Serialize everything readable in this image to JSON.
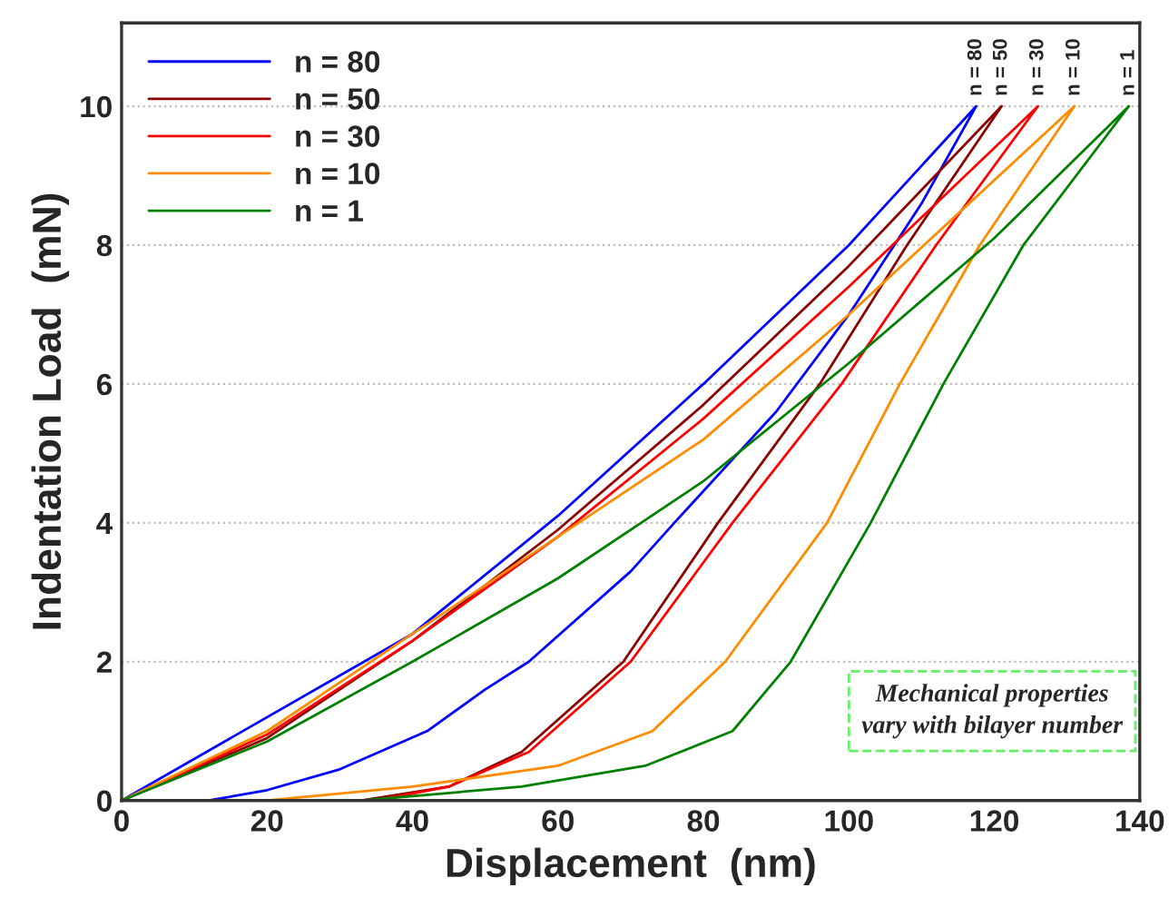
{
  "chart_data": {
    "type": "line",
    "xlabel": "Displacement  (nm)",
    "ylabel": "Indentation Load  (mN)",
    "xlim": [
      0,
      140
    ],
    "xticks": [
      0,
      20,
      40,
      60,
      80,
      100,
      120,
      140
    ],
    "ylim": [
      0,
      11.2
    ],
    "yticks": [
      0,
      2,
      4,
      6,
      8,
      10
    ],
    "grid": "y",
    "legend": "top left",
    "marker": "none",
    "line_style": "solid",
    "series": [
      {
        "name": "n = 80",
        "color": "#0000ff",
        "x": [
          0,
          40,
          60,
          80,
          100,
          117.5,
          110,
          100,
          90,
          76,
          70,
          56,
          50,
          42,
          30,
          20,
          12
        ],
        "values": [
          0,
          2.4,
          4.1,
          6.0,
          8.0,
          10,
          8.6,
          7.0,
          5.6,
          4,
          3.3,
          2,
          1.6,
          1,
          0.45,
          0.15,
          0
        ]
      },
      {
        "name": "n = 50",
        "color": "#8b0000",
        "x": [
          0,
          20,
          40,
          60,
          80,
          100,
          121,
          108,
          96,
          82,
          69,
          55,
          45,
          33
        ],
        "values": [
          0,
          0.9,
          2.3,
          3.9,
          5.7,
          7.7,
          10,
          8,
          6,
          4,
          2,
          0.7,
          0.2,
          0
        ]
      },
      {
        "name": "n = 30",
        "color": "#ff0000",
        "x": [
          0,
          20,
          40,
          60,
          80,
          100,
          126,
          112,
          99,
          84,
          70,
          56,
          45,
          35
        ],
        "values": [
          0,
          0.95,
          2.3,
          3.8,
          5.5,
          7.4,
          10,
          8,
          6,
          4,
          2,
          0.7,
          0.2,
          0
        ]
      },
      {
        "name": "n = 10",
        "color": "#ff8c00",
        "x": [
          0,
          20,
          40,
          60,
          80,
          100,
          131,
          118,
          107,
          97,
          83,
          73,
          60,
          40,
          20
        ],
        "values": [
          0,
          1.0,
          2.4,
          3.8,
          5.2,
          7.0,
          10,
          8,
          6,
          4,
          2,
          1,
          0.5,
          0.2,
          0
        ]
      },
      {
        "name": "n = 1",
        "color": "#008000",
        "x": [
          0,
          20,
          40,
          60,
          80,
          100,
          120,
          138.5,
          124,
          113,
          103,
          92,
          84,
          72,
          55,
          33
        ],
        "values": [
          0,
          0.85,
          2.0,
          3.2,
          4.6,
          6.3,
          8.1,
          10,
          8,
          6,
          4,
          2,
          1,
          0.5,
          0.2,
          0
        ]
      }
    ],
    "annotations": [
      {
        "text": "n = 80",
        "x": 117.5,
        "y": 10
      },
      {
        "text": "n = 50",
        "x": 121,
        "y": 10
      },
      {
        "text": "n = 30",
        "x": 126,
        "y": 10
      },
      {
        "text": "n = 10",
        "x": 131,
        "y": 10
      },
      {
        "text": "n = 1",
        "x": 138.5,
        "y": 10
      },
      "Mechanical properties\nvary with bilayer number"
    ]
  }
}
